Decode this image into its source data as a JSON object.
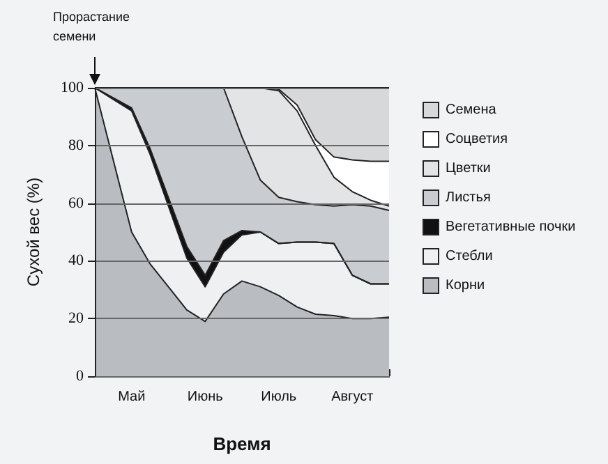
{
  "chart_data": {
    "type": "area",
    "stacked": true,
    "xlabel": "Время",
    "ylabel": "Сухой вес (%)",
    "categories": [
      null,
      null,
      "Май",
      null,
      null,
      null,
      "Июнь",
      null,
      null,
      null,
      "Июль",
      null,
      null,
      null,
      "Август",
      null,
      null
    ],
    "series": [
      {
        "name": "Корни",
        "color": "#b9bcc0",
        "values": [
          100,
          75,
          50,
          39,
          31,
          23,
          19,
          28.5,
          33,
          31,
          28,
          24,
          21.5,
          21,
          20,
          20,
          20.5
        ]
      },
      {
        "name": "Стебли",
        "color": "#eef0f2",
        "values": [
          0,
          21,
          42,
          38,
          28,
          18,
          12,
          14.5,
          16,
          19,
          18,
          22.5,
          25,
          25,
          15,
          12,
          11.5
        ]
      },
      {
        "name": "Вегетативные почки",
        "color": "#111111",
        "values": [
          0,
          0.5,
          1,
          2,
          3,
          4,
          4,
          4,
          1.5,
          0,
          0,
          0,
          0,
          0,
          0,
          0,
          0
        ]
      },
      {
        "name": "Листья",
        "color": "#c9ccd0",
        "values": [
          0,
          3.5,
          7,
          21,
          38,
          55,
          65,
          53,
          32.5,
          18,
          16,
          14,
          13,
          13,
          24.5,
          27,
          25.5
        ]
      },
      {
        "name": "Цветки",
        "color": "#e2e4e6",
        "values": [
          0,
          0,
          0,
          0,
          0,
          0,
          0,
          0,
          17,
          32,
          37,
          31.5,
          20.5,
          10,
          4.5,
          2,
          1.5
        ]
      },
      {
        "name": "Соцветия",
        "color": "#ffffff",
        "values": [
          0,
          0,
          0,
          0,
          0,
          0,
          0,
          0,
          0,
          0,
          0.5,
          2,
          2,
          7,
          11,
          13.5,
          15.5
        ]
      },
      {
        "name": "Семена",
        "color": "#d6d8da",
        "values": [
          0,
          0,
          0,
          0,
          0,
          0,
          0,
          0,
          0,
          0,
          0.5,
          6,
          18,
          24,
          25,
          25.5,
          25.5
        ]
      }
    ],
    "ylim": [
      0,
      100
    ],
    "yticks": [
      0,
      20,
      40,
      60,
      80,
      100
    ],
    "grid": "y",
    "legend": "right",
    "marker": "none",
    "annotations": [
      {
        "text": "Прорастание семени",
        "y": 100
      }
    ]
  }
}
